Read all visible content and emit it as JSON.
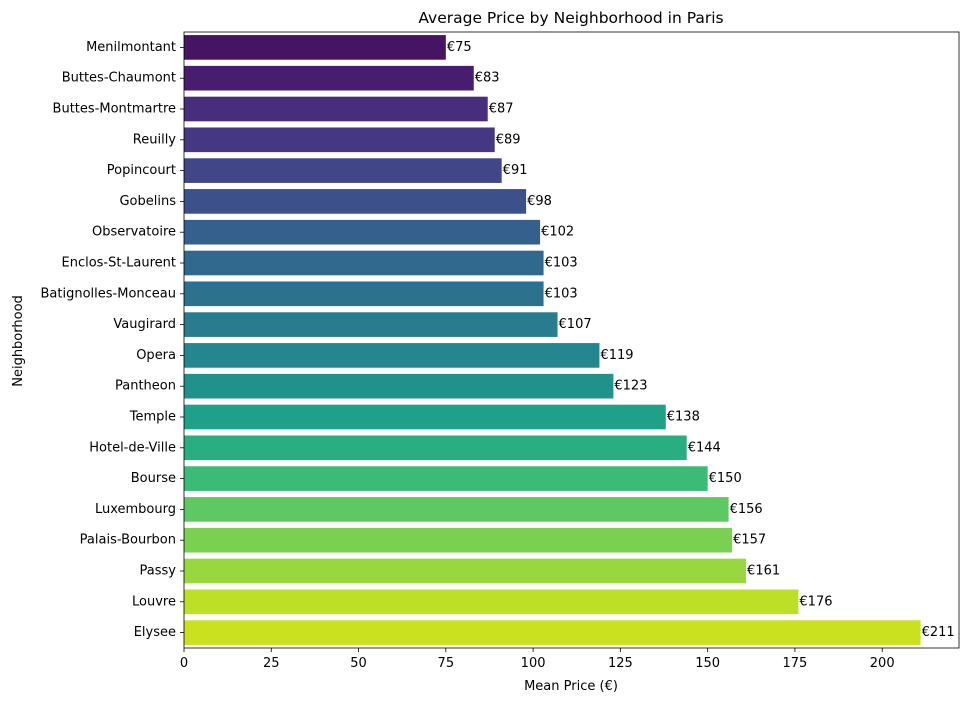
{
  "chart_data": {
    "type": "bar",
    "orientation": "horizontal",
    "title": "Average Price by Neighborhood in Paris",
    "xlabel": "Mean Price (€)",
    "ylabel": "Neighborhood",
    "xlim": [
      0,
      222
    ],
    "xticks": [
      0,
      25,
      50,
      75,
      100,
      125,
      150,
      175,
      200
    ],
    "grid": false,
    "legend": "none",
    "value_prefix": "€",
    "colormap": "viridis",
    "categories": [
      "Menilmontant",
      "Buttes-Chaumont",
      "Buttes-Montmartre",
      "Reuilly",
      "Popincourt",
      "Gobelins",
      "Observatoire",
      "Enclos-St-Laurent",
      "Batignolles-Monceau",
      "Vaugirard",
      "Opera",
      "Pantheon",
      "Temple",
      "Hotel-de-Ville",
      "Bourse",
      "Luxembourg",
      "Palais-Bourbon",
      "Passy",
      "Louvre",
      "Elysee"
    ],
    "values": [
      75,
      83,
      87,
      89,
      91,
      98,
      102,
      103,
      103,
      107,
      119,
      123,
      138,
      144,
      150,
      156,
      157,
      161,
      176,
      211
    ],
    "data_labels": [
      "€75",
      "€83",
      "€87",
      "€89",
      "€91",
      "€98",
      "€102",
      "€103",
      "€103",
      "€107",
      "€119",
      "€123",
      "€138",
      "€144",
      "€150",
      "€156",
      "€157",
      "€161",
      "€176",
      "€211"
    ],
    "colors": [
      "#471463",
      "#481c6e",
      "#472d7b",
      "#453781",
      "#404688",
      "#3c508b",
      "#355f8d",
      "#31688e",
      "#2c718e",
      "#287c8e",
      "#24868e",
      "#21918c",
      "#1fa088",
      "#28ae80",
      "#3bbb75",
      "#5ec962",
      "#7ad151",
      "#98d83e",
      "#bddf26",
      "#cae11f"
    ]
  }
}
